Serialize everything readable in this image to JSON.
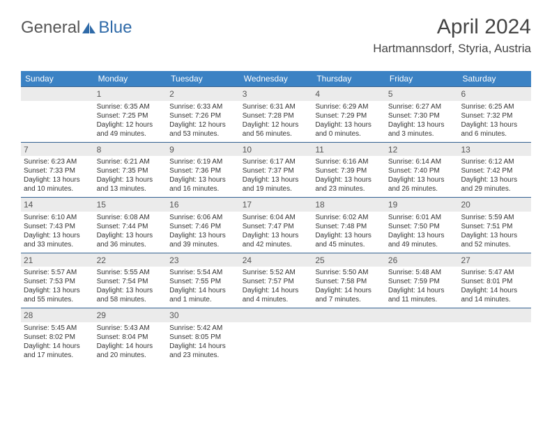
{
  "logo": {
    "text1": "General",
    "text2": "Blue"
  },
  "title": "April 2024",
  "location": "Hartmannsdorf, Styria, Austria",
  "header_bg": "#3b82c4",
  "header_fg": "#ffffff",
  "rule_color": "#2f5e8f",
  "shade_bg": "#ebebeb",
  "days": [
    "Sunday",
    "Monday",
    "Tuesday",
    "Wednesday",
    "Thursday",
    "Friday",
    "Saturday"
  ],
  "weeks": [
    [
      {
        "n": "",
        "sr": "",
        "ss": "",
        "dl": ""
      },
      {
        "n": "1",
        "sr": "Sunrise: 6:35 AM",
        "ss": "Sunset: 7:25 PM",
        "dl": "Daylight: 12 hours and 49 minutes."
      },
      {
        "n": "2",
        "sr": "Sunrise: 6:33 AM",
        "ss": "Sunset: 7:26 PM",
        "dl": "Daylight: 12 hours and 53 minutes."
      },
      {
        "n": "3",
        "sr": "Sunrise: 6:31 AM",
        "ss": "Sunset: 7:28 PM",
        "dl": "Daylight: 12 hours and 56 minutes."
      },
      {
        "n": "4",
        "sr": "Sunrise: 6:29 AM",
        "ss": "Sunset: 7:29 PM",
        "dl": "Daylight: 13 hours and 0 minutes."
      },
      {
        "n": "5",
        "sr": "Sunrise: 6:27 AM",
        "ss": "Sunset: 7:30 PM",
        "dl": "Daylight: 13 hours and 3 minutes."
      },
      {
        "n": "6",
        "sr": "Sunrise: 6:25 AM",
        "ss": "Sunset: 7:32 PM",
        "dl": "Daylight: 13 hours and 6 minutes."
      }
    ],
    [
      {
        "n": "7",
        "sr": "Sunrise: 6:23 AM",
        "ss": "Sunset: 7:33 PM",
        "dl": "Daylight: 13 hours and 10 minutes."
      },
      {
        "n": "8",
        "sr": "Sunrise: 6:21 AM",
        "ss": "Sunset: 7:35 PM",
        "dl": "Daylight: 13 hours and 13 minutes."
      },
      {
        "n": "9",
        "sr": "Sunrise: 6:19 AM",
        "ss": "Sunset: 7:36 PM",
        "dl": "Daylight: 13 hours and 16 minutes."
      },
      {
        "n": "10",
        "sr": "Sunrise: 6:17 AM",
        "ss": "Sunset: 7:37 PM",
        "dl": "Daylight: 13 hours and 19 minutes."
      },
      {
        "n": "11",
        "sr": "Sunrise: 6:16 AM",
        "ss": "Sunset: 7:39 PM",
        "dl": "Daylight: 13 hours and 23 minutes."
      },
      {
        "n": "12",
        "sr": "Sunrise: 6:14 AM",
        "ss": "Sunset: 7:40 PM",
        "dl": "Daylight: 13 hours and 26 minutes."
      },
      {
        "n": "13",
        "sr": "Sunrise: 6:12 AM",
        "ss": "Sunset: 7:42 PM",
        "dl": "Daylight: 13 hours and 29 minutes."
      }
    ],
    [
      {
        "n": "14",
        "sr": "Sunrise: 6:10 AM",
        "ss": "Sunset: 7:43 PM",
        "dl": "Daylight: 13 hours and 33 minutes."
      },
      {
        "n": "15",
        "sr": "Sunrise: 6:08 AM",
        "ss": "Sunset: 7:44 PM",
        "dl": "Daylight: 13 hours and 36 minutes."
      },
      {
        "n": "16",
        "sr": "Sunrise: 6:06 AM",
        "ss": "Sunset: 7:46 PM",
        "dl": "Daylight: 13 hours and 39 minutes."
      },
      {
        "n": "17",
        "sr": "Sunrise: 6:04 AM",
        "ss": "Sunset: 7:47 PM",
        "dl": "Daylight: 13 hours and 42 minutes."
      },
      {
        "n": "18",
        "sr": "Sunrise: 6:02 AM",
        "ss": "Sunset: 7:48 PM",
        "dl": "Daylight: 13 hours and 45 minutes."
      },
      {
        "n": "19",
        "sr": "Sunrise: 6:01 AM",
        "ss": "Sunset: 7:50 PM",
        "dl": "Daylight: 13 hours and 49 minutes."
      },
      {
        "n": "20",
        "sr": "Sunrise: 5:59 AM",
        "ss": "Sunset: 7:51 PM",
        "dl": "Daylight: 13 hours and 52 minutes."
      }
    ],
    [
      {
        "n": "21",
        "sr": "Sunrise: 5:57 AM",
        "ss": "Sunset: 7:53 PM",
        "dl": "Daylight: 13 hours and 55 minutes."
      },
      {
        "n": "22",
        "sr": "Sunrise: 5:55 AM",
        "ss": "Sunset: 7:54 PM",
        "dl": "Daylight: 13 hours and 58 minutes."
      },
      {
        "n": "23",
        "sr": "Sunrise: 5:54 AM",
        "ss": "Sunset: 7:55 PM",
        "dl": "Daylight: 14 hours and 1 minute."
      },
      {
        "n": "24",
        "sr": "Sunrise: 5:52 AM",
        "ss": "Sunset: 7:57 PM",
        "dl": "Daylight: 14 hours and 4 minutes."
      },
      {
        "n": "25",
        "sr": "Sunrise: 5:50 AM",
        "ss": "Sunset: 7:58 PM",
        "dl": "Daylight: 14 hours and 7 minutes."
      },
      {
        "n": "26",
        "sr": "Sunrise: 5:48 AM",
        "ss": "Sunset: 7:59 PM",
        "dl": "Daylight: 14 hours and 11 minutes."
      },
      {
        "n": "27",
        "sr": "Sunrise: 5:47 AM",
        "ss": "Sunset: 8:01 PM",
        "dl": "Daylight: 14 hours and 14 minutes."
      }
    ],
    [
      {
        "n": "28",
        "sr": "Sunrise: 5:45 AM",
        "ss": "Sunset: 8:02 PM",
        "dl": "Daylight: 14 hours and 17 minutes."
      },
      {
        "n": "29",
        "sr": "Sunrise: 5:43 AM",
        "ss": "Sunset: 8:04 PM",
        "dl": "Daylight: 14 hours and 20 minutes."
      },
      {
        "n": "30",
        "sr": "Sunrise: 5:42 AM",
        "ss": "Sunset: 8:05 PM",
        "dl": "Daylight: 14 hours and 23 minutes."
      },
      {
        "n": "",
        "sr": "",
        "ss": "",
        "dl": ""
      },
      {
        "n": "",
        "sr": "",
        "ss": "",
        "dl": ""
      },
      {
        "n": "",
        "sr": "",
        "ss": "",
        "dl": ""
      },
      {
        "n": "",
        "sr": "",
        "ss": "",
        "dl": ""
      }
    ]
  ]
}
